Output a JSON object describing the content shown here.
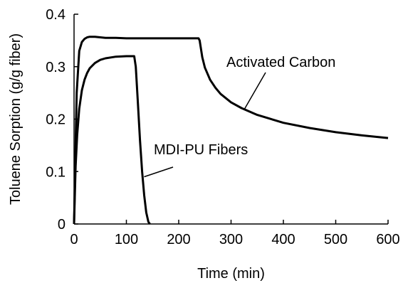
{
  "chart_data": {
    "type": "line",
    "xlabel": "Time (min)",
    "ylabel": "Toluene Sorption (g/g fiber)",
    "xlim": [
      0,
      600
    ],
    "ylim": [
      0,
      0.4
    ],
    "xticks": [
      0,
      100,
      200,
      300,
      400,
      500,
      600
    ],
    "yticks": [
      0,
      0.1,
      0.2,
      0.3,
      0.4
    ],
    "ytick_labels": [
      "0",
      "0.1",
      "0.2",
      "0.3",
      "0.4"
    ],
    "grid": false,
    "legend": "none",
    "series": [
      {
        "name": "Activated Carbon",
        "x": [
          0,
          5,
          10,
          15,
          20,
          25,
          30,
          40,
          50,
          60,
          80,
          100,
          150,
          200,
          238,
          240,
          245,
          250,
          260,
          270,
          280,
          300,
          320,
          350,
          400,
          450,
          500,
          550,
          600
        ],
        "y": [
          0,
          0.25,
          0.33,
          0.347,
          0.353,
          0.356,
          0.357,
          0.357,
          0.356,
          0.355,
          0.355,
          0.354,
          0.354,
          0.354,
          0.354,
          0.35,
          0.318,
          0.298,
          0.275,
          0.26,
          0.248,
          0.232,
          0.221,
          0.208,
          0.193,
          0.183,
          0.175,
          0.169,
          0.164
        ]
      },
      {
        "name": "MDI-PU Fibers",
        "x": [
          0,
          3,
          6,
          10,
          15,
          20,
          25,
          30,
          40,
          50,
          60,
          80,
          100,
          115,
          118,
          122,
          126,
          130,
          134,
          138,
          142,
          145
        ],
        "y": [
          0,
          0.11,
          0.17,
          0.22,
          0.255,
          0.275,
          0.288,
          0.297,
          0.307,
          0.313,
          0.316,
          0.319,
          0.32,
          0.32,
          0.3,
          0.23,
          0.16,
          0.1,
          0.055,
          0.022,
          0.004,
          0
        ]
      }
    ],
    "annotations": [
      {
        "text": "Activated Carbon",
        "series": "Activated Carbon",
        "point_x": 325,
        "point_y": 0.218
      },
      {
        "text": "MDI-PU Fibers",
        "series": "MDI-PU Fibers",
        "point_x": 134,
        "point_y": 0.09
      }
    ],
    "line_color": "#000000"
  }
}
